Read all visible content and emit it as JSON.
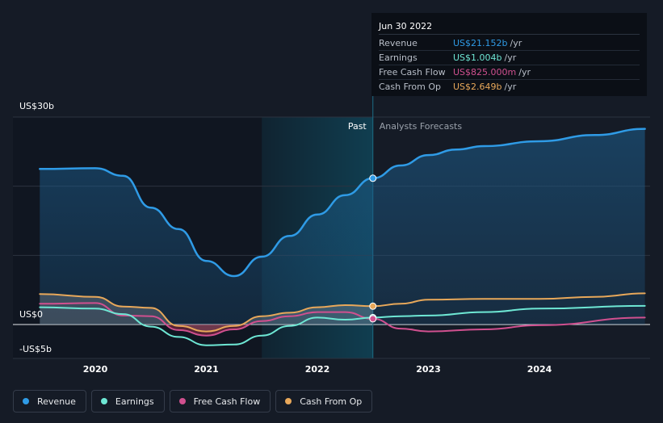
{
  "tooltip": {
    "date": "Jun 30 2022",
    "rows": [
      {
        "label": "Revenue",
        "value": "US$21.152b",
        "unit": "/yr",
        "color": "#2f9be6"
      },
      {
        "label": "Earnings",
        "value": "US$1.004b",
        "unit": "/yr",
        "color": "#6ee7d4"
      },
      {
        "label": "Free Cash Flow",
        "value": "US$825.000m",
        "unit": "/yr",
        "color": "#d0508f"
      },
      {
        "label": "Cash From Op",
        "value": "US$2.649b",
        "unit": "/yr",
        "color": "#e8a85a"
      }
    ]
  },
  "labels": {
    "past": "Past",
    "forecast": "Analysts Forecasts"
  },
  "legend": [
    {
      "label": "Revenue",
      "color": "#2f9be6"
    },
    {
      "label": "Earnings",
      "color": "#6ee7d4"
    },
    {
      "label": "Free Cash Flow",
      "color": "#d0508f"
    },
    {
      "label": "Cash From Op",
      "color": "#e8a85a"
    }
  ],
  "chart_data": {
    "type": "line",
    "title": "",
    "ylabel": "",
    "xlabel": "",
    "ylim": [
      -5,
      30
    ],
    "xlim": [
      2019.45,
      2024.95
    ],
    "x_ticks": [
      2020,
      2021,
      2022,
      2023,
      2024
    ],
    "x_tick_labels": [
      "2020",
      "2021",
      "2022",
      "2023",
      "2024"
    ],
    "y_tick_labels": [
      {
        "value": 30,
        "label": "US$30b"
      },
      {
        "value": 0,
        "label": "US$0"
      },
      {
        "value": -5,
        "label": "-US$5b"
      }
    ],
    "gridlines": [
      30,
      20,
      10,
      0
    ],
    "highlight_start": 2021.5,
    "present": 2022.5,
    "grid": true,
    "legend_position": "bottom-left",
    "series": [
      {
        "name": "Revenue",
        "color": "#2f9be6",
        "area": true,
        "points": [
          [
            2019.5,
            22.5
          ],
          [
            2020.0,
            22.6
          ],
          [
            2020.25,
            21.5
          ],
          [
            2020.5,
            16.9
          ],
          [
            2020.75,
            13.8
          ],
          [
            2021.0,
            9.2
          ],
          [
            2021.25,
            7.0
          ],
          [
            2021.5,
            9.8
          ],
          [
            2021.75,
            12.8
          ],
          [
            2022.0,
            15.9
          ],
          [
            2022.25,
            18.7
          ],
          [
            2022.5,
            21.152
          ],
          [
            2022.75,
            23.0
          ],
          [
            2023.0,
            24.5
          ],
          [
            2023.25,
            25.3
          ],
          [
            2023.5,
            25.8
          ],
          [
            2024.0,
            26.5
          ],
          [
            2024.5,
            27.4
          ],
          [
            2024.95,
            28.3
          ]
        ]
      },
      {
        "name": "Earnings",
        "color": "#6ee7d4",
        "area": false,
        "points": [
          [
            2019.5,
            2.5
          ],
          [
            2020.0,
            2.3
          ],
          [
            2020.25,
            1.5
          ],
          [
            2020.5,
            -0.3
          ],
          [
            2020.75,
            -1.8
          ],
          [
            2021.0,
            -3.0
          ],
          [
            2021.25,
            -2.9
          ],
          [
            2021.5,
            -1.6
          ],
          [
            2021.75,
            -0.2
          ],
          [
            2022.0,
            1.0
          ],
          [
            2022.25,
            0.7
          ],
          [
            2022.5,
            1.004
          ],
          [
            2022.75,
            1.2
          ],
          [
            2023.0,
            1.3
          ],
          [
            2023.5,
            1.8
          ],
          [
            2024.0,
            2.3
          ],
          [
            2024.95,
            2.7
          ]
        ]
      },
      {
        "name": "Free Cash Flow",
        "color": "#d0508f",
        "area": false,
        "points": [
          [
            2019.5,
            3.0
          ],
          [
            2020.0,
            3.1
          ],
          [
            2020.25,
            1.3
          ],
          [
            2020.5,
            1.2
          ],
          [
            2020.75,
            -0.8
          ],
          [
            2021.0,
            -1.6
          ],
          [
            2021.25,
            -0.7
          ],
          [
            2021.5,
            0.5
          ],
          [
            2021.75,
            1.2
          ],
          [
            2022.0,
            1.8
          ],
          [
            2022.25,
            1.8
          ],
          [
            2022.5,
            0.825
          ],
          [
            2022.75,
            -0.6
          ],
          [
            2023.0,
            -1.0
          ],
          [
            2023.5,
            -0.7
          ],
          [
            2024.0,
            -0.1
          ],
          [
            2024.95,
            1.0
          ]
        ]
      },
      {
        "name": "Cash From Op",
        "color": "#e8a85a",
        "area": false,
        "points": [
          [
            2019.5,
            4.4
          ],
          [
            2020.0,
            4.0
          ],
          [
            2020.25,
            2.6
          ],
          [
            2020.5,
            2.4
          ],
          [
            2020.75,
            -0.2
          ],
          [
            2021.0,
            -1.0
          ],
          [
            2021.25,
            -0.2
          ],
          [
            2021.5,
            1.2
          ],
          [
            2021.75,
            1.7
          ],
          [
            2022.0,
            2.5
          ],
          [
            2022.25,
            2.8
          ],
          [
            2022.5,
            2.649
          ],
          [
            2022.75,
            3.0
          ],
          [
            2023.0,
            3.6
          ],
          [
            2023.5,
            3.7
          ],
          [
            2024.0,
            3.7
          ],
          [
            2024.5,
            4.0
          ],
          [
            2024.95,
            4.5
          ]
        ]
      }
    ],
    "markers": [
      {
        "series": "Revenue",
        "x": 2022.5,
        "y": 21.152
      },
      {
        "series": "Earnings",
        "x": 2022.5,
        "y": 1.004
      },
      {
        "series": "Free Cash Flow",
        "x": 2022.5,
        "y": 0.825
      },
      {
        "series": "Cash From Op",
        "x": 2022.5,
        "y": 2.649
      }
    ]
  }
}
